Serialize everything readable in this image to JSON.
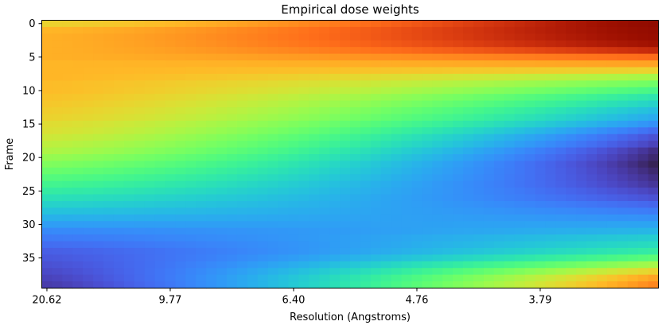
{
  "chart_data": {
    "type": "heatmap",
    "title": "Empirical dose weights",
    "xlabel": "Resolution (Angstroms)",
    "ylabel": "Frame",
    "x_tick_labels": [
      "20.62",
      "9.77",
      "6.40",
      "4.76",
      "3.79"
    ],
    "y_tick_labels": [
      "0",
      "5",
      "10",
      "15",
      "20",
      "25",
      "30",
      "35"
    ],
    "n_frames": 40,
    "n_resolution_bins": 60,
    "colormap": "turbo",
    "value_range": [
      0,
      1
    ],
    "description_of_values": "weight per frame (rows) and resolution bin (columns)",
    "frame_profiles": {
      "low_resolution_column": [
        0.62,
        0.67,
        0.68,
        0.68,
        0.68,
        0.68,
        0.67,
        0.67,
        0.67,
        0.66,
        0.66,
        0.65,
        0.64,
        0.63,
        0.62,
        0.6,
        0.59,
        0.57,
        0.55,
        0.53,
        0.5,
        0.47,
        0.44,
        0.41,
        0.38,
        0.35,
        0.32,
        0.29,
        0.26,
        0.23,
        0.2,
        0.17,
        0.15,
        0.13,
        0.11,
        0.1,
        0.09,
        0.08,
        0.07,
        0.06
      ],
      "high_resolution_column": [
        0.98,
        0.97,
        0.96,
        0.94,
        0.88,
        0.78,
        0.7,
        0.62,
        0.52,
        0.45,
        0.39,
        0.33,
        0.29,
        0.25,
        0.22,
        0.18,
        0.13,
        0.09,
        0.07,
        0.04,
        0.03,
        0.02,
        0.03,
        0.04,
        0.05,
        0.07,
        0.09,
        0.12,
        0.15,
        0.18,
        0.21,
        0.24,
        0.28,
        0.31,
        0.35,
        0.42,
        0.52,
        0.62,
        0.7,
        0.74
      ]
    }
  }
}
